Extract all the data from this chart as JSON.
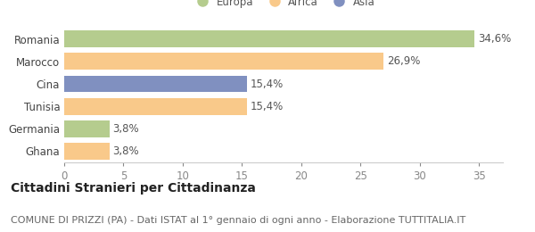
{
  "categories": [
    "Romania",
    "Marocco",
    "Cina",
    "Tunisia",
    "Germania",
    "Ghana"
  ],
  "values": [
    34.6,
    26.9,
    15.4,
    15.4,
    3.8,
    3.8
  ],
  "colors": [
    "#b5cc8e",
    "#f9c98a",
    "#8090c0",
    "#f9c98a",
    "#b5cc8e",
    "#f9c98a"
  ],
  "bar_labels": [
    "34,6%",
    "26,9%",
    "15,4%",
    "15,4%",
    "3,8%",
    "3,8%"
  ],
  "legend_labels": [
    "Europa",
    "Africa",
    "Asia"
  ],
  "legend_colors": [
    "#b5cc8e",
    "#f9c98a",
    "#8090c0"
  ],
  "title": "Cittadini Stranieri per Cittadinanza",
  "subtitle": "COMUNE DI PRIZZI (PA) - Dati ISTAT al 1° gennaio di ogni anno - Elaborazione TUTTITALIA.IT",
  "xlim": [
    0,
    37
  ],
  "xticks": [
    0,
    5,
    10,
    15,
    20,
    25,
    30,
    35
  ],
  "background_color": "#ffffff",
  "title_fontsize": 10,
  "subtitle_fontsize": 8,
  "tick_fontsize": 8.5,
  "label_fontsize": 8.5
}
